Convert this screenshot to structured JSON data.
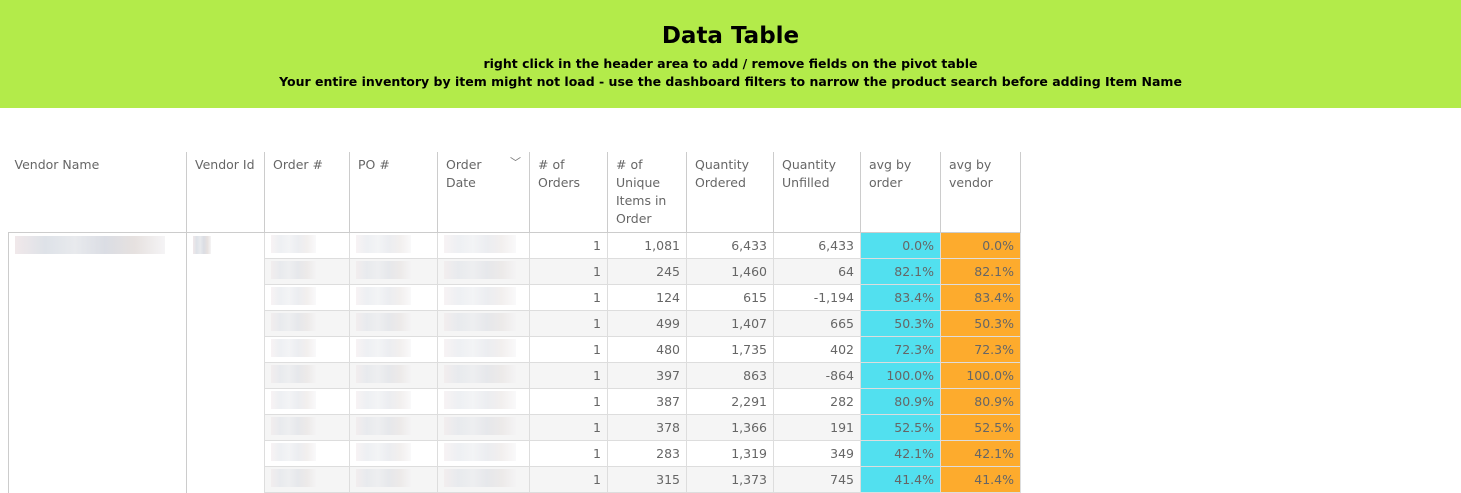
{
  "banner": {
    "title": "Data Table",
    "line1": "right click in the header area to add / remove fields on the pivot table",
    "line2": "Your entire inventory by item might not load - use the dashboard filters to narrow the product search before adding Item Name",
    "color": "#b3eb4a"
  },
  "columns": [
    "Vendor Name",
    "Vendor Id",
    "Order #",
    "PO #",
    "Order Date",
    "# of Orders",
    "# of Unique Items in Order",
    "Quantity Ordered",
    "Quantity Unfilled",
    "avg by order",
    "avg by vendor"
  ],
  "colors": {
    "avg_by_order": "#52e0ef",
    "avg_by_vendor": "#fdab2d"
  },
  "rows": [
    {
      "orders": "1",
      "unique": "1,081",
      "qty": "6,433",
      "unfilled": "6,433",
      "avg_order": "0.0%",
      "avg_vendor": "0.0%"
    },
    {
      "orders": "1",
      "unique": "245",
      "qty": "1,460",
      "unfilled": "64",
      "avg_order": "82.1%",
      "avg_vendor": "82.1%"
    },
    {
      "orders": "1",
      "unique": "124",
      "qty": "615",
      "unfilled": "-1,194",
      "avg_order": "83.4%",
      "avg_vendor": "83.4%"
    },
    {
      "orders": "1",
      "unique": "499",
      "qty": "1,407",
      "unfilled": "665",
      "avg_order": "50.3%",
      "avg_vendor": "50.3%"
    },
    {
      "orders": "1",
      "unique": "480",
      "qty": "1,735",
      "unfilled": "402",
      "avg_order": "72.3%",
      "avg_vendor": "72.3%"
    },
    {
      "orders": "1",
      "unique": "397",
      "qty": "863",
      "unfilled": "-864",
      "avg_order": "100.0%",
      "avg_vendor": "100.0%"
    },
    {
      "orders": "1",
      "unique": "387",
      "qty": "2,291",
      "unfilled": "282",
      "avg_order": "80.9%",
      "avg_vendor": "80.9%"
    },
    {
      "orders": "1",
      "unique": "378",
      "qty": "1,366",
      "unfilled": "191",
      "avg_order": "52.5%",
      "avg_vendor": "52.5%"
    },
    {
      "orders": "1",
      "unique": "283",
      "qty": "1,319",
      "unfilled": "349",
      "avg_order": "42.1%",
      "avg_vendor": "42.1%"
    },
    {
      "orders": "1",
      "unique": "315",
      "qty": "1,373",
      "unfilled": "745",
      "avg_order": "41.4%",
      "avg_vendor": "41.4%"
    }
  ]
}
